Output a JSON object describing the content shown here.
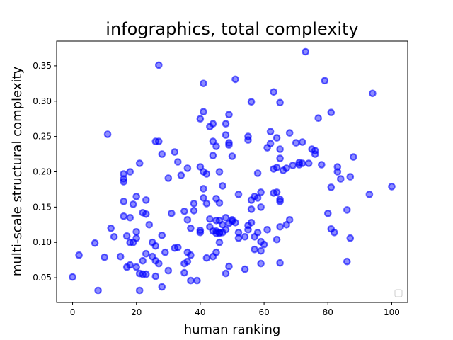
{
  "chart_data": {
    "type": "scatter",
    "title": "infographics, total complexity",
    "xlabel": "human ranking",
    "ylabel": "multi-scale structural complexity",
    "xlim": [
      -5,
      105
    ],
    "ylim": [
      0.015,
      0.385
    ],
    "xticks": [
      "0",
      "20",
      "40",
      "60",
      "80",
      "100"
    ],
    "yticks": [
      "0.05",
      "0.10",
      "0.15",
      "0.20",
      "0.25",
      "0.30",
      "0.35"
    ],
    "grid": false,
    "legend": "lower-right (empty)",
    "marker_color": "#0000ff",
    "points": [
      [
        0,
        0.051
      ],
      [
        2,
        0.082
      ],
      [
        7,
        0.099
      ],
      [
        8,
        0.032
      ],
      [
        10,
        0.079
      ],
      [
        11,
        0.253
      ],
      [
        12,
        0.12
      ],
      [
        13,
        0.108
      ],
      [
        15,
        0.08
      ],
      [
        16,
        0.197
      ],
      [
        16,
        0.19
      ],
      [
        16,
        0.186
      ],
      [
        16,
        0.158
      ],
      [
        16,
        0.137
      ],
      [
        17,
        0.109
      ],
      [
        17,
        0.065
      ],
      [
        18,
        0.2
      ],
      [
        18,
        0.135
      ],
      [
        18,
        0.1
      ],
      [
        18,
        0.068
      ],
      [
        19,
        0.154
      ],
      [
        19,
        0.1
      ],
      [
        20,
        0.165
      ],
      [
        20,
        0.115
      ],
      [
        20,
        0.106
      ],
      [
        20,
        0.065
      ],
      [
        21,
        0.212
      ],
      [
        21,
        0.056
      ],
      [
        21,
        0.032
      ],
      [
        22,
        0.142
      ],
      [
        22,
        0.074
      ],
      [
        22,
        0.055
      ],
      [
        23,
        0.16
      ],
      [
        23,
        0.14
      ],
      [
        23,
        0.084
      ],
      [
        23,
        0.055
      ],
      [
        24,
        0.125
      ],
      [
        25,
        0.1
      ],
      [
        25,
        0.08
      ],
      [
        26,
        0.243
      ],
      [
        26,
        0.095
      ],
      [
        26,
        0.074
      ],
      [
        26,
        0.052
      ],
      [
        27,
        0.351
      ],
      [
        27,
        0.243
      ],
      [
        27,
        0.07
      ],
      [
        28,
        0.225
      ],
      [
        28,
        0.11
      ],
      [
        28,
        0.037
      ],
      [
        29,
        0.086
      ],
      [
        30,
        0.191
      ],
      [
        30,
        0.06
      ],
      [
        31,
        0.141
      ],
      [
        32,
        0.228
      ],
      [
        32,
        0.092
      ],
      [
        33,
        0.214
      ],
      [
        33,
        0.093
      ],
      [
        34,
        0.195
      ],
      [
        35,
        0.144
      ],
      [
        35,
        0.07
      ],
      [
        35,
        0.057
      ],
      [
        36,
        0.205
      ],
      [
        36,
        0.132
      ],
      [
        36,
        0.086
      ],
      [
        36,
        0.073
      ],
      [
        37,
        0.12
      ],
      [
        37,
        0.082
      ],
      [
        37,
        0.046
      ],
      [
        38,
        0.155
      ],
      [
        38,
        0.145
      ],
      [
        39,
        0.046
      ],
      [
        40,
        0.207
      ],
      [
        40,
        0.117
      ],
      [
        40,
        0.114
      ],
      [
        40,
        0.275
      ],
      [
        41,
        0.325
      ],
      [
        41,
        0.285
      ],
      [
        41,
        0.2
      ],
      [
        41,
        0.176
      ],
      [
        41,
        0.163
      ],
      [
        42,
        0.197
      ],
      [
        42,
        0.155
      ],
      [
        42,
        0.078
      ],
      [
        43,
        0.264
      ],
      [
        43,
        0.133
      ],
      [
        43,
        0.122
      ],
      [
        44,
        0.268
      ],
      [
        44,
        0.243
      ],
      [
        44,
        0.223
      ],
      [
        44,
        0.116
      ],
      [
        44,
        0.08
      ],
      [
        45,
        0.236
      ],
      [
        45,
        0.162
      ],
      [
        45,
        0.131
      ],
      [
        45,
        0.116
      ],
      [
        45,
        0.113
      ],
      [
        45,
        0.086
      ],
      [
        46,
        0.2
      ],
      [
        46,
        0.156
      ],
      [
        46,
        0.131
      ],
      [
        46,
        0.114
      ],
      [
        46,
        0.113
      ],
      [
        46,
        0.1
      ],
      [
        47,
        0.18
      ],
      [
        47,
        0.125
      ],
      [
        47,
        0.114
      ],
      [
        48,
        0.268
      ],
      [
        48,
        0.252
      ],
      [
        48,
        0.135
      ],
      [
        48,
        0.118
      ],
      [
        48,
        0.056
      ],
      [
        49,
        0.281
      ],
      [
        49,
        0.241
      ],
      [
        49,
        0.238
      ],
      [
        49,
        0.127
      ],
      [
        49,
        0.066
      ],
      [
        50,
        0.222
      ],
      [
        50,
        0.132
      ],
      [
        50,
        0.13
      ],
      [
        51,
        0.331
      ],
      [
        51,
        0.128
      ],
      [
        52,
        0.168
      ],
      [
        52,
        0.114
      ],
      [
        52,
        0.106
      ],
      [
        54,
        0.108
      ],
      [
        54,
        0.062
      ],
      [
        55,
        0.25
      ],
      [
        55,
        0.245
      ],
      [
        55,
        0.124
      ],
      [
        55,
        0.118
      ],
      [
        56,
        0.299
      ],
      [
        56,
        0.16
      ],
      [
        56,
        0.147
      ],
      [
        56,
        0.128
      ],
      [
        57,
        0.165
      ],
      [
        57,
        0.09
      ],
      [
        57,
        0.108
      ],
      [
        58,
        0.198
      ],
      [
        58,
        0.163
      ],
      [
        58,
        0.114
      ],
      [
        59,
        0.171
      ],
      [
        59,
        0.15
      ],
      [
        59,
        0.101
      ],
      [
        59,
        0.088
      ],
      [
        59,
        0.07
      ],
      [
        60,
        0.097
      ],
      [
        61,
        0.234
      ],
      [
        61,
        0.118
      ],
      [
        62,
        0.257
      ],
      [
        62,
        0.24
      ],
      [
        63,
        0.313
      ],
      [
        63,
        0.204
      ],
      [
        63,
        0.17
      ],
      [
        64,
        0.248
      ],
      [
        64,
        0.206
      ],
      [
        64,
        0.171
      ],
      [
        64,
        0.104
      ],
      [
        65,
        0.298
      ],
      [
        65,
        0.232
      ],
      [
        65,
        0.219
      ],
      [
        65,
        0.161
      ],
      [
        65,
        0.158
      ],
      [
        65,
        0.122
      ],
      [
        65,
        0.071
      ],
      [
        66,
        0.202
      ],
      [
        67,
        0.205
      ],
      [
        67,
        0.125
      ],
      [
        68,
        0.255
      ],
      [
        68,
        0.132
      ],
      [
        69,
        0.209
      ],
      [
        70,
        0.241
      ],
      [
        71,
        0.213
      ],
      [
        71,
        0.21
      ],
      [
        72,
        0.242
      ],
      [
        72,
        0.212
      ],
      [
        73,
        0.37
      ],
      [
        74,
        0.212
      ],
      [
        75,
        0.232
      ],
      [
        76,
        0.23
      ],
      [
        76,
        0.225
      ],
      [
        77,
        0.276
      ],
      [
        78,
        0.21
      ],
      [
        79,
        0.329
      ],
      [
        80,
        0.141
      ],
      [
        81,
        0.284
      ],
      [
        81,
        0.178
      ],
      [
        81,
        0.119
      ],
      [
        82,
        0.114
      ],
      [
        83,
        0.207
      ],
      [
        83,
        0.2
      ],
      [
        84,
        0.19
      ],
      [
        86,
        0.146
      ],
      [
        86,
        0.073
      ],
      [
        87,
        0.193
      ],
      [
        87,
        0.106
      ],
      [
        88,
        0.221
      ],
      [
        93,
        0.168
      ],
      [
        94,
        0.311
      ],
      [
        100,
        0.179
      ]
    ]
  }
}
